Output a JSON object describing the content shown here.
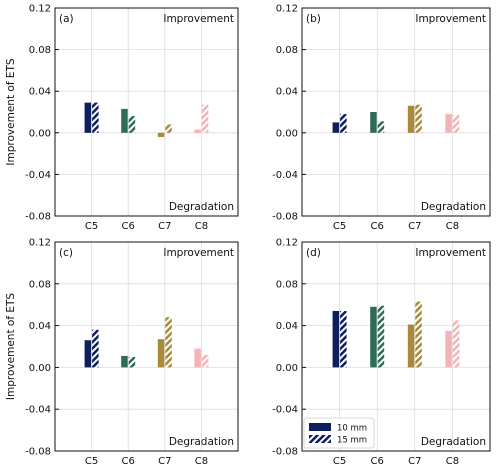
{
  "chart_data": {
    "type": "bar",
    "ylabel": "Improvement of ETS",
    "ylim": [
      -0.08,
      0.12
    ],
    "yticks": [
      -0.08,
      -0.04,
      0.0,
      0.04,
      0.08,
      0.12
    ],
    "ytick_labels": [
      "-0.08",
      "-0.04",
      "0.00",
      "0.04",
      "0.08",
      "0.12"
    ],
    "categories": [
      "C5",
      "C6",
      "C7",
      "C8"
    ],
    "category_colors": [
      "#0d1f5c",
      "#2f6b58",
      "#a88a3a",
      "#f4b4b6"
    ],
    "series": [
      {
        "name": "10 mm",
        "pattern": "solid"
      },
      {
        "name": "15 mm",
        "pattern": "hatched"
      }
    ],
    "grid": true,
    "legend_placement": "lower-left of panel (d)",
    "top_annotation": "Improvement",
    "bottom_annotation": "Degradation",
    "panels": [
      {
        "label": "(a)",
        "values_10mm": [
          0.029,
          0.023,
          -0.004,
          0.003
        ],
        "values_15mm": [
          0.029,
          0.016,
          0.008,
          0.027
        ]
      },
      {
        "label": "(b)",
        "values_10mm": [
          0.01,
          0.02,
          0.026,
          0.018
        ],
        "values_15mm": [
          0.018,
          0.011,
          0.027,
          0.017
        ]
      },
      {
        "label": "(c)",
        "values_10mm": [
          0.026,
          0.011,
          0.027,
          0.018
        ],
        "values_15mm": [
          0.036,
          0.01,
          0.048,
          0.012
        ]
      },
      {
        "label": "(d)",
        "values_10mm": [
          0.054,
          0.058,
          0.041,
          0.035
        ],
        "values_15mm": [
          0.054,
          0.059,
          0.063,
          0.045
        ]
      }
    ]
  }
}
